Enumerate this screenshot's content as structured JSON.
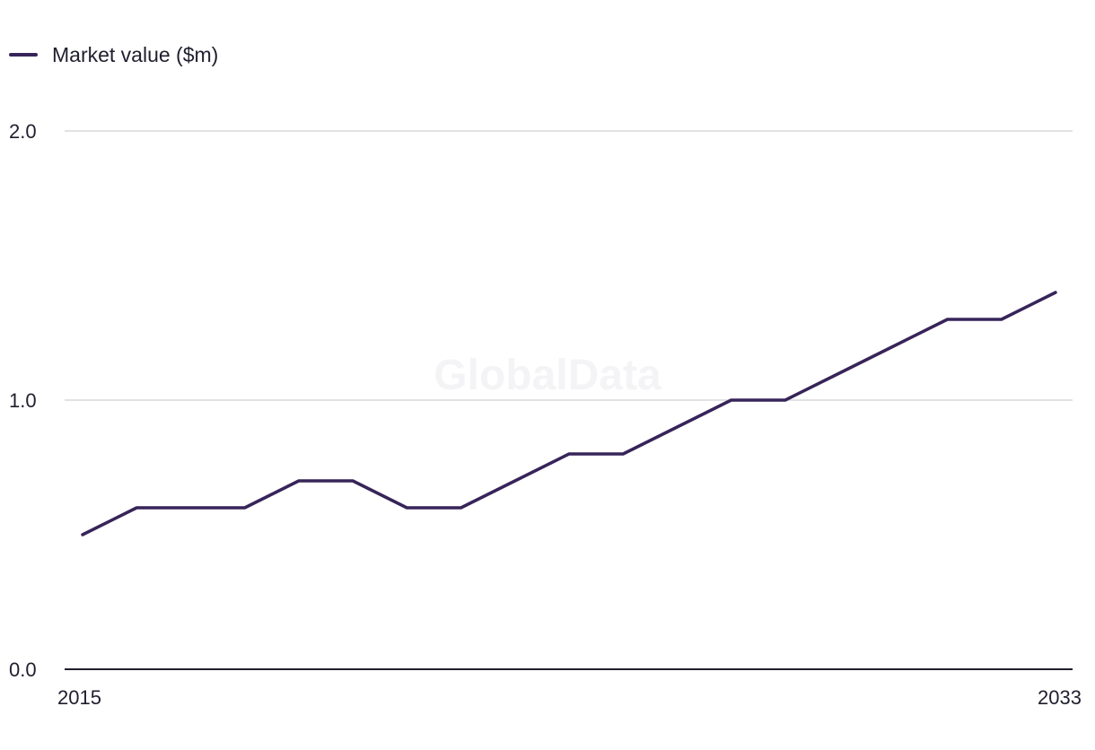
{
  "legend": {
    "label": "Market value ($m)"
  },
  "watermark": "GlobalData",
  "colors": {
    "series": "#372459",
    "grid": "#d9d9de",
    "axis": "#1f1f2e"
  },
  "chart_data": {
    "type": "line",
    "title": "",
    "xlabel": "",
    "ylabel": "",
    "x": [
      2015,
      2016,
      2017,
      2018,
      2019,
      2020,
      2021,
      2022,
      2023,
      2024,
      2025,
      2026,
      2027,
      2028,
      2029,
      2030,
      2031,
      2032,
      2033
    ],
    "series": [
      {
        "name": "Market value ($m)",
        "values": [
          0.5,
          0.6,
          0.6,
          0.6,
          0.7,
          0.7,
          0.6,
          0.6,
          0.7,
          0.8,
          0.8,
          0.9,
          1.0,
          1.0,
          1.1,
          1.2,
          1.3,
          1.3,
          1.4
        ]
      }
    ],
    "ylim": [
      0,
      2
    ],
    "yticks": [
      "0.0",
      "1.0",
      "2.0"
    ],
    "xticks": [
      "2015",
      "2033"
    ],
    "grid": true,
    "legend_position": "top-left"
  }
}
